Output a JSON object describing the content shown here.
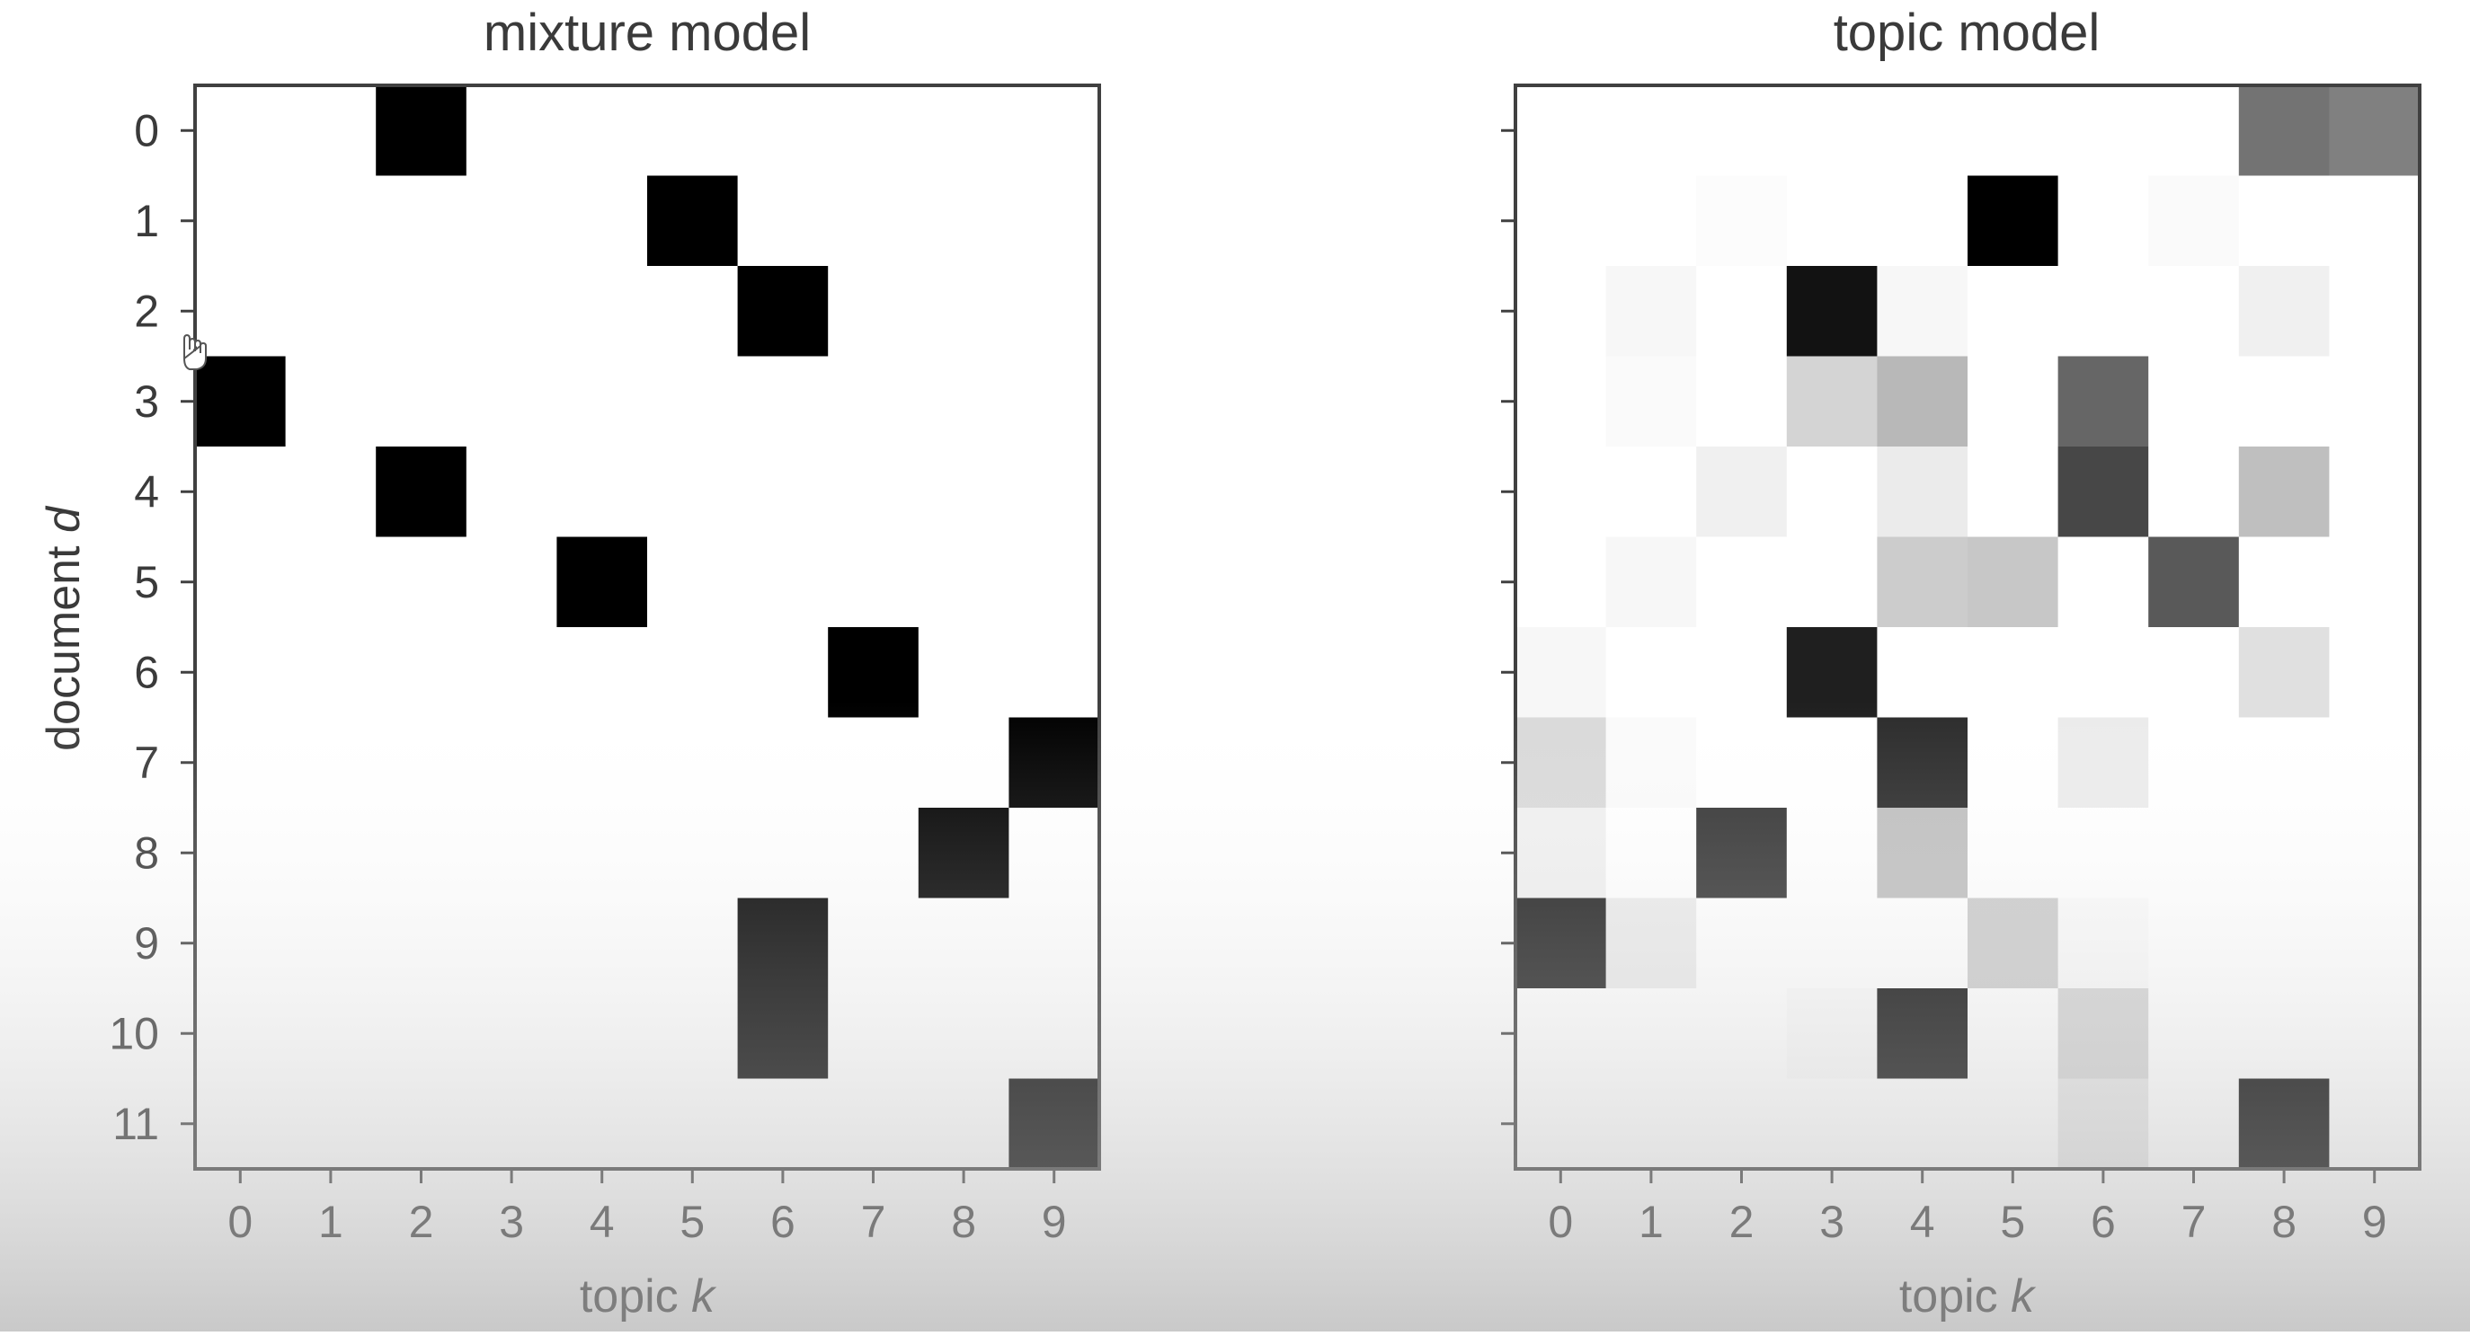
{
  "chart_data": [
    {
      "type": "heatmap",
      "title": "mixture model",
      "xlabel": "topic",
      "xlabel_var": "k",
      "ylabel": "document",
      "ylabel_var": "d",
      "x": [
        0,
        1,
        2,
        3,
        4,
        5,
        6,
        7,
        8,
        9
      ],
      "y": [
        0,
        1,
        2,
        3,
        4,
        5,
        6,
        7,
        8,
        9,
        10,
        11
      ],
      "colormap": "grayscale (0 = white, 1 = black)",
      "values": [
        [
          0,
          0,
          1,
          0,
          0,
          0,
          0,
          0,
          0,
          0
        ],
        [
          0,
          0,
          0,
          0,
          0,
          1,
          0,
          0,
          0,
          0
        ],
        [
          0,
          0,
          0,
          0,
          0,
          0,
          1,
          0,
          0,
          0
        ],
        [
          1,
          0,
          0,
          0,
          0,
          0,
          0,
          0,
          0,
          0
        ],
        [
          0,
          0,
          1,
          0,
          0,
          0,
          0,
          0,
          0,
          0
        ],
        [
          0,
          0,
          0,
          0,
          1,
          0,
          0,
          0,
          0,
          0
        ],
        [
          0,
          0,
          0,
          0,
          0,
          0,
          0,
          1,
          0,
          0
        ],
        [
          0,
          0,
          0,
          0,
          0,
          0,
          0,
          0,
          0,
          1
        ],
        [
          0,
          0,
          0,
          0,
          0,
          0,
          0,
          0,
          1,
          0
        ],
        [
          0,
          0,
          0,
          0,
          0,
          0,
          1,
          0,
          0,
          0
        ],
        [
          0,
          0,
          0,
          0,
          0,
          0,
          1,
          0,
          0,
          0
        ],
        [
          0,
          0,
          0,
          0,
          0,
          0,
          0,
          0,
          0,
          1
        ]
      ]
    },
    {
      "type": "heatmap",
      "title": "topic model",
      "xlabel": "topic",
      "xlabel_var": "k",
      "ylabel": "",
      "x": [
        0,
        1,
        2,
        3,
        4,
        5,
        6,
        7,
        8,
        9
      ],
      "y": [
        0,
        1,
        2,
        3,
        4,
        5,
        6,
        7,
        8,
        9,
        10,
        11
      ],
      "ytick_labels_shown": false,
      "colormap": "grayscale (0 = white, 1 = black)",
      "values": [
        [
          0,
          0,
          0,
          0,
          0,
          0,
          0,
          0,
          0.55,
          0.5
        ],
        [
          0,
          0,
          0.01,
          0,
          0,
          1,
          0,
          0.02,
          0,
          0
        ],
        [
          0,
          0.03,
          0,
          0.93,
          0.03,
          0,
          0,
          0,
          0.06,
          0
        ],
        [
          0,
          0.02,
          0,
          0.17,
          0.28,
          0,
          0.6,
          0,
          0,
          0
        ],
        [
          0,
          0,
          0.06,
          0,
          0.08,
          0,
          0.72,
          0,
          0.25,
          0
        ],
        [
          0,
          0.03,
          0,
          0,
          0.2,
          0.22,
          0,
          0.65,
          0,
          0
        ],
        [
          0.03,
          0,
          0,
          0.88,
          0,
          0,
          0,
          0,
          0.12,
          0
        ],
        [
          0.15,
          0.02,
          0,
          0,
          0.83,
          0,
          0.08,
          0,
          0,
          0
        ],
        [
          0.06,
          0,
          0.8,
          0,
          0.25,
          0,
          0,
          0,
          0,
          0
        ],
        [
          0.88,
          0.08,
          0,
          0,
          0,
          0.2,
          0.02,
          0,
          0,
          0
        ],
        [
          0,
          0,
          0,
          0.02,
          0.95,
          0,
          0.17,
          0,
          0,
          0
        ],
        [
          0,
          0,
          0,
          0,
          0,
          0,
          0.1,
          0,
          1,
          0
        ]
      ]
    }
  ]
}
